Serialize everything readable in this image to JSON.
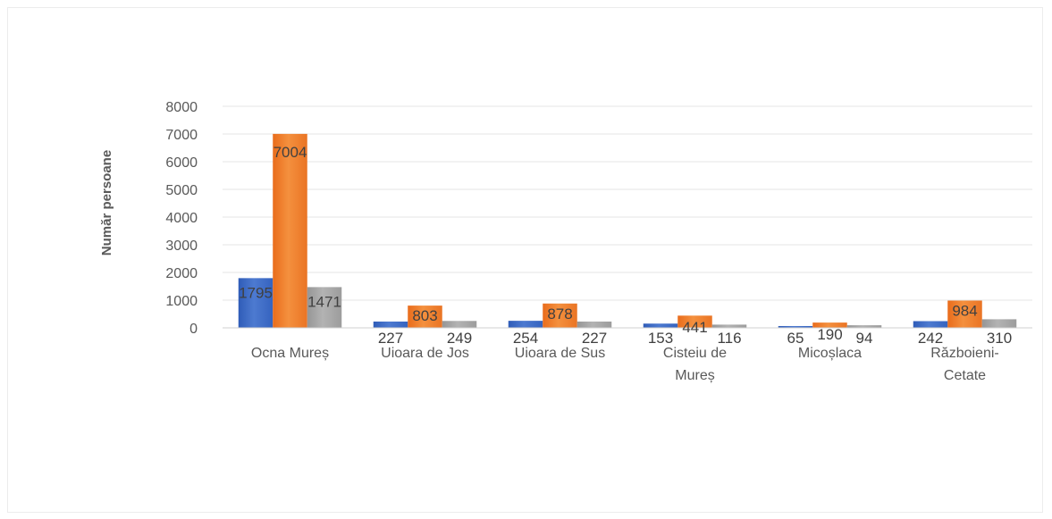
{
  "chart_data": {
    "type": "bar",
    "title": "",
    "xlabel": "",
    "ylabel": "Număr persoane",
    "ylim": [
      0,
      8000
    ],
    "yticks": [
      0,
      1000,
      2000,
      3000,
      4000,
      5000,
      6000,
      7000,
      8000
    ],
    "grid": true,
    "legend": "none",
    "categories": [
      [
        "Ocna Mureș"
      ],
      [
        "Uioara de Jos"
      ],
      [
        "Uioara de Sus"
      ],
      [
        "Cisteiu de",
        "Mureș"
      ],
      [
        "Micoșlaca"
      ],
      [
        "Războieni-",
        "Cetate"
      ]
    ],
    "series": [
      {
        "color": "#4472c4",
        "values": [
          1795,
          227,
          254,
          153,
          65,
          242
        ]
      },
      {
        "color": "#ed7d31",
        "values": [
          7004,
          803,
          878,
          441,
          190,
          984
        ]
      },
      {
        "color": "#a5a5a5",
        "values": [
          1471,
          249,
          227,
          116,
          94,
          310
        ]
      }
    ]
  }
}
